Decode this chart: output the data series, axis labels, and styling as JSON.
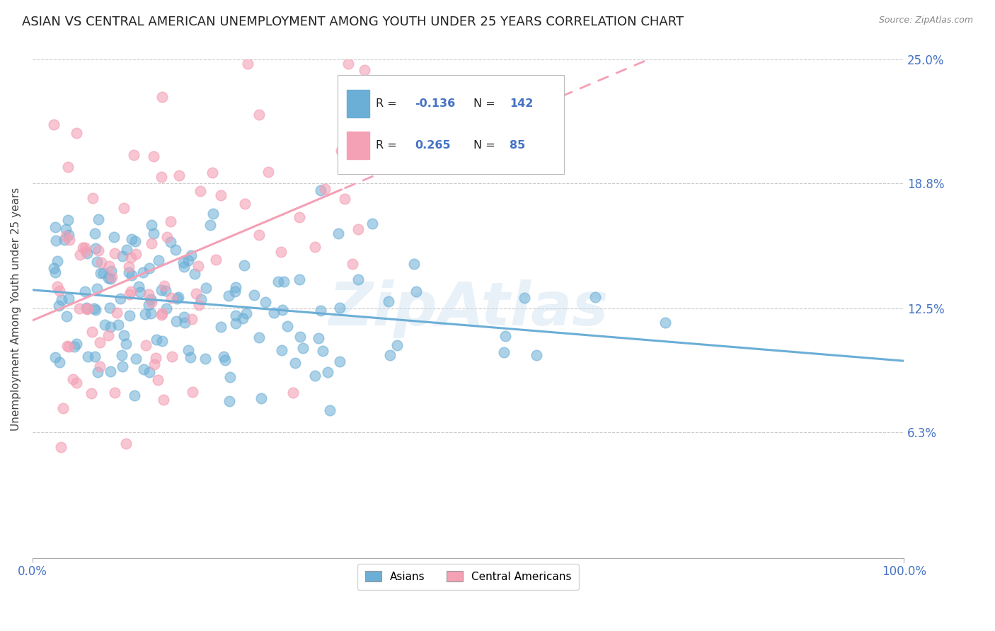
{
  "title": "ASIAN VS CENTRAL AMERICAN UNEMPLOYMENT AMONG YOUTH UNDER 25 YEARS CORRELATION CHART",
  "source": "Source: ZipAtlas.com",
  "ylabel": "Unemployment Among Youth under 25 years",
  "xlim": [
    0.0,
    1.0
  ],
  "ylim": [
    0.0,
    0.25
  ],
  "yticks": [
    0.0,
    0.063,
    0.125,
    0.188,
    0.25
  ],
  "ytick_labels": [
    "",
    "6.3%",
    "12.5%",
    "18.8%",
    "25.0%"
  ],
  "xtick_labels": [
    "0.0%",
    "100.0%"
  ],
  "asian_color": "#6baed6",
  "central_color": "#f4a0b5",
  "asian_R": -0.136,
  "asian_N": 142,
  "central_R": 0.265,
  "central_N": 85,
  "legend_label_asian": "Asians",
  "legend_label_central": "Central Americans",
  "watermark": "ZipAtlas",
  "title_fontsize": 13,
  "label_fontsize": 11,
  "tick_fontsize": 12,
  "right_tick_color": "#4472c4",
  "seed_asian": 7,
  "seed_central": 17
}
